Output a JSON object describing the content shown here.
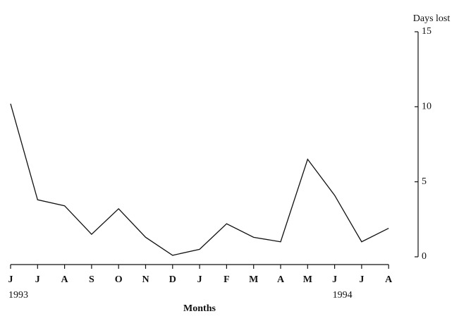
{
  "chart_data": {
    "type": "line",
    "x_label": "Months",
    "y_label": "Days lost",
    "categories": [
      "J",
      "J",
      "A",
      "S",
      "O",
      "N",
      "D",
      "J",
      "F",
      "M",
      "A",
      "M",
      "J",
      "J",
      "A"
    ],
    "year_labels": [
      "1993",
      null,
      null,
      null,
      null,
      null,
      null,
      null,
      null,
      null,
      null,
      null,
      "1994",
      null,
      null
    ],
    "values": [
      10.2,
      3.8,
      3.4,
      1.5,
      3.2,
      1.3,
      0.1,
      0.5,
      2.2,
      1.3,
      1.0,
      6.5,
      4.1,
      1.0,
      1.9
    ],
    "color": "#111111",
    "ylim": [
      0,
      15
    ],
    "yticks": [
      0,
      5,
      10,
      15
    ],
    "y_axis_side": "right",
    "grid": false
  }
}
